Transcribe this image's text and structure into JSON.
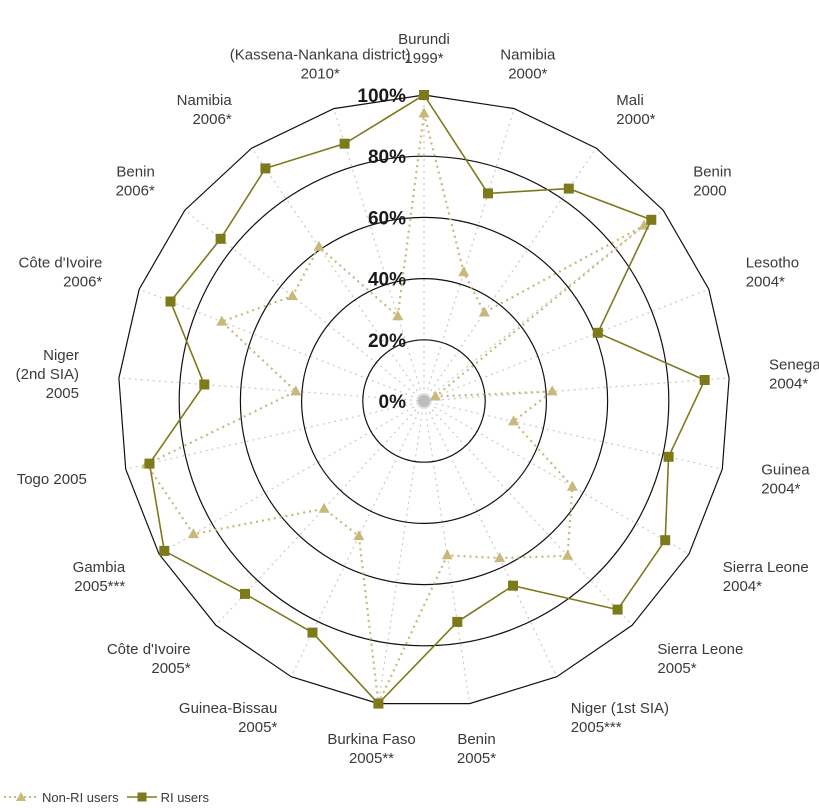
{
  "chart_data": {
    "type": "radar",
    "categories": [
      [
        "Burundi",
        "1999*"
      ],
      [
        "Namibia",
        "2000*"
      ],
      [
        "Mali",
        "2000*"
      ],
      [
        "Benin",
        "2000"
      ],
      [
        "Lesotho",
        "2004*"
      ],
      [
        "Senegal",
        "2004*"
      ],
      [
        "Guinea",
        "2004*"
      ],
      [
        "Sierra Leone",
        "2004*"
      ],
      [
        "Sierra Leone",
        "2005*"
      ],
      [
        "Niger (1st SIA)",
        "2005***"
      ],
      [
        "Benin",
        "2005*"
      ],
      [
        "Burkina Faso",
        "2005**"
      ],
      [
        "Guinea-Bissau",
        "2005*"
      ],
      [
        "Côte d'Ivoire",
        "2005*"
      ],
      [
        "Gambia",
        "2005***"
      ],
      [
        "Togo 2005"
      ],
      [
        "Niger",
        "(2nd SIA)",
        "2005"
      ],
      [
        "Côte d'Ivoire",
        "2006*"
      ],
      [
        "Benin",
        "2006*"
      ],
      [
        "Namibia",
        "2006*"
      ],
      [
        "(Kassena-Nankana district)",
        "2010*"
      ]
    ],
    "ticks": [
      "0%",
      "20%",
      "40%",
      "60%",
      "80%",
      "100%"
    ],
    "tick_values": [
      0,
      20,
      40,
      60,
      80,
      100
    ],
    "rlim": [
      0,
      100
    ],
    "series": [
      {
        "name": "Non-RI users",
        "color": "#c8b87a",
        "line_style": "dotted",
        "marker": "triangle",
        "values": [
          94,
          44,
          35,
          92,
          4,
          42,
          30,
          56,
          69,
          57,
          51,
          100,
          49,
          48,
          87,
          93,
          42,
          71,
          55,
          61,
          29
        ]
      },
      {
        "name": "RI users",
        "color": "#7d7a1c",
        "line_style": "solid",
        "marker": "square",
        "values": [
          100,
          71,
          84,
          95,
          61,
          92,
          82,
          91,
          93,
          67,
          73,
          100,
          84,
          86,
          98,
          92,
          72,
          89,
          85,
          92,
          88
        ]
      }
    ],
    "grid": true,
    "legend_position": "bottom-left"
  }
}
